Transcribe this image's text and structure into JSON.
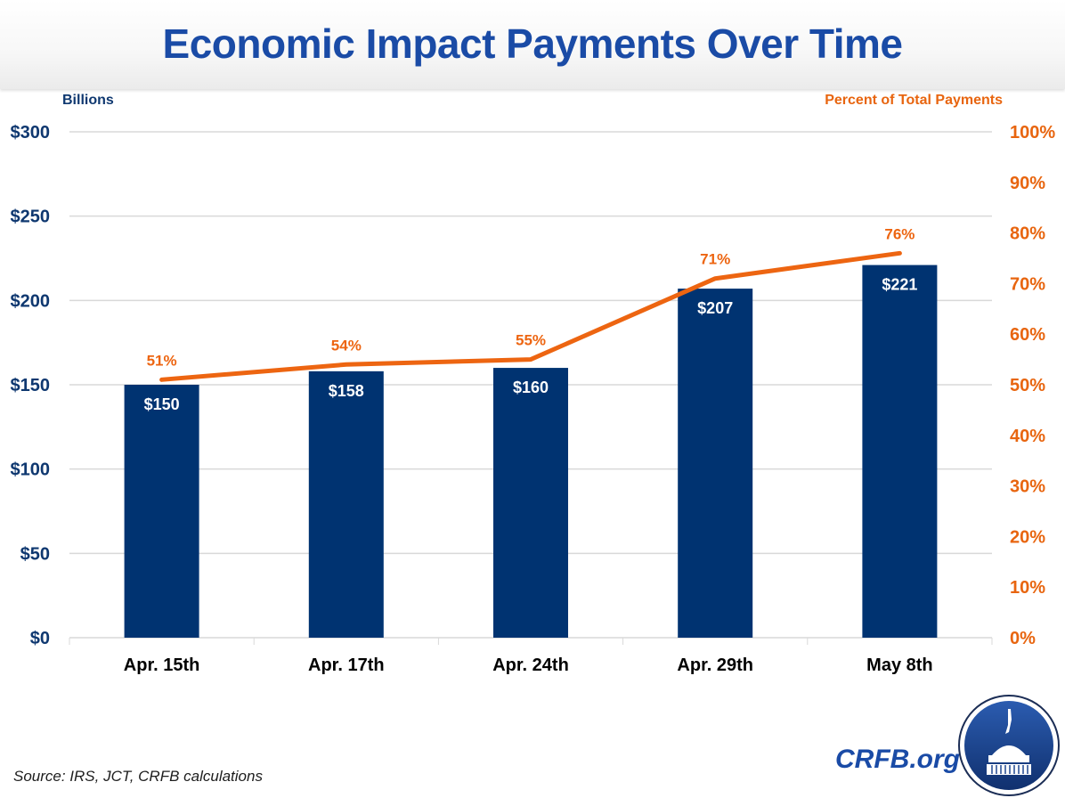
{
  "chart_data": {
    "type": "bar",
    "title": "Economic Impact Payments Over Time",
    "categories": [
      "Apr. 15th",
      "Apr. 17th",
      "Apr. 24th",
      "Apr. 29th",
      "May 8th"
    ],
    "series": [
      {
        "name": "Economic Impact Payments (Billions)",
        "type": "bar",
        "axis": "left",
        "values": [
          150,
          158,
          160,
          207,
          221
        ],
        "labels": [
          "$150",
          "$158",
          "$160",
          "$207",
          "$221"
        ],
        "color": "#003371"
      },
      {
        "name": "Percent of Total Payments",
        "type": "line",
        "axis": "right",
        "values": [
          51,
          54,
          55,
          71,
          76
        ],
        "labels": [
          "51%",
          "54%",
          "55%",
          "71%",
          "76%"
        ],
        "color": "#ed6511"
      }
    ],
    "ylabel": "Billions",
    "ylabel_right": "Percent of Total Payments",
    "ylim": [
      0,
      300
    ],
    "ylim_right": [
      0,
      100
    ],
    "yticks": [
      "$0",
      "$50",
      "$100",
      "$150",
      "$200",
      "$250",
      "$300"
    ],
    "yticks_right": [
      "0%",
      "10%",
      "20%",
      "30%",
      "40%",
      "50%",
      "60%",
      "70%",
      "80%",
      "90%",
      "100%"
    ],
    "grid": true,
    "legend": "none"
  },
  "footer": {
    "source": "Source: IRS, JCT, CRFB calculations",
    "brand": "CRFB.org",
    "logo_icon": "capitol-dome-icon"
  }
}
